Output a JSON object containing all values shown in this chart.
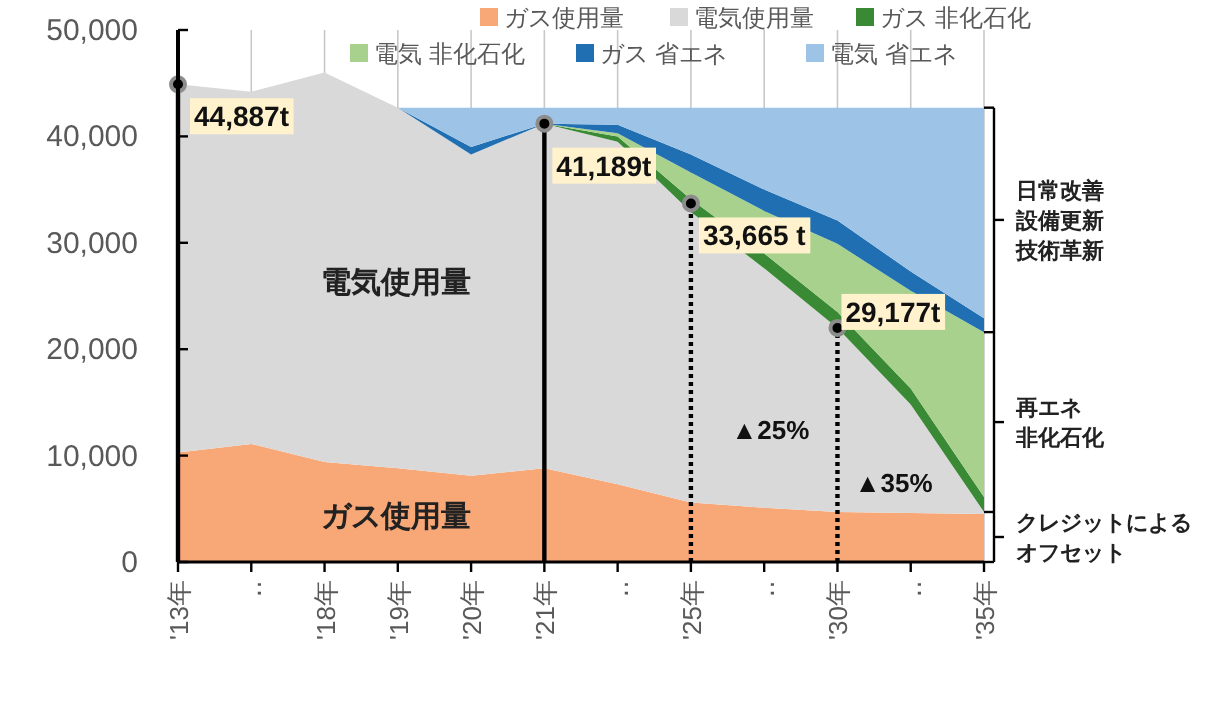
{
  "chart_data": {
    "type": "area",
    "stacked": true,
    "categories": [
      "'13年",
      "‥",
      "'18年",
      "'19年",
      "'20年",
      "'21年",
      "‥",
      "'25年",
      "‥",
      "'30年",
      "‥",
      "'35年"
    ],
    "series": [
      {
        "name": "ガス使用量",
        "color": "#f8a877",
        "values": [
          10300,
          11100,
          9400,
          8800,
          8100,
          8800,
          7300,
          5600,
          5100,
          4700,
          4600,
          4500
        ]
      },
      {
        "name": "電気使用量",
        "color": "#d9d9d9",
        "values": [
          34600,
          33100,
          36600,
          33900,
          30200,
          32400,
          32200,
          27300,
          22500,
          17300,
          10200,
          200
        ]
      },
      {
        "name": "ガス 非化石化",
        "color": "#3a8a35",
        "values": [
          0,
          0,
          0,
          0,
          0,
          0,
          500,
          1200,
          1400,
          1500,
          1500,
          1400
        ]
      },
      {
        "name": "電気 非化石化",
        "color": "#a9d18e",
        "values": [
          0,
          0,
          0,
          0,
          0,
          0,
          300,
          2500,
          4000,
          6400,
          9200,
          15500
        ]
      },
      {
        "name": "ガス 省エネ",
        "color": "#1f6fb2",
        "values": [
          0,
          0,
          0,
          0,
          700,
          0,
          800,
          1700,
          2000,
          2200,
          1800,
          1300
        ]
      },
      {
        "name": "電気 省エネ",
        "color": "#9dc3e6",
        "values": [
          0,
          0,
          0,
          0,
          3700,
          1500,
          1600,
          4400,
          7700,
          10600,
          15400,
          19800
        ]
      },
      {
        "type": "lollipop",
        "color": "#000000",
        "line_style": "solid",
        "marker": "circle",
        "x": [
          "'13年",
          "'21年"
        ],
        "values": [
          44900,
          41200
        ]
      },
      {
        "type": "lollipop",
        "color": "#000000",
        "line_style": "dotted",
        "marker": "circle",
        "x": [
          "'25年",
          "'30年"
        ],
        "values": [
          33700,
          22000
        ]
      }
    ],
    "ylim": [
      0,
      50000
    ],
    "yticks": [
      {
        "value": 0,
        "label": "0"
      },
      {
        "value": 10000,
        "label": "10,000"
      },
      {
        "value": 20000,
        "label": "20,000"
      },
      {
        "value": 30000,
        "label": "30,000"
      },
      {
        "value": 40000,
        "label": "40,000"
      },
      {
        "value": 50000,
        "label": "50,000"
      }
    ],
    "grid": "x",
    "legend": "top",
    "annotations": [
      "電気使用量",
      "ガス使用量",
      "44,887t",
      "41,189t",
      "33,665 t",
      "29,177t",
      "▲25%",
      "▲35%",
      "日常改善設備更新技術革新",
      "再エネ非化石化",
      "クレジットによるオフセット"
    ]
  }
}
